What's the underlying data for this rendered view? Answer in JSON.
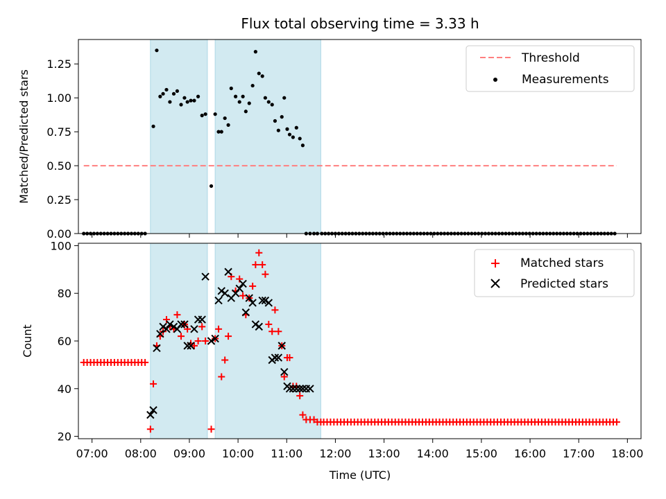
{
  "chart_data": {
    "type": "scatter",
    "title": "Flux total observing time = 3.33 h",
    "xlabel": "Time (UTC)",
    "x_ticks": [
      "07:00",
      "08:00",
      "09:00",
      "10:00",
      "11:00",
      "12:00",
      "13:00",
      "14:00",
      "15:00",
      "16:00",
      "17:00",
      "18:00"
    ],
    "x_tick_hours": [
      7,
      8,
      9,
      10,
      11,
      12,
      13,
      14,
      15,
      16,
      17,
      18
    ],
    "xlim": [
      6.72,
      18.28
    ],
    "shaded_intervals": [
      [
        8.2,
        9.37
      ],
      [
        9.53,
        11.7
      ]
    ],
    "colors": {
      "shade": "#add8e6",
      "threshold": "#ff7f7f",
      "measurements": "#000000",
      "matched": "#ff0000",
      "predicted": "#000000"
    },
    "top_panel": {
      "ylabel": "Matched/Predicted stars",
      "ylim": [
        0,
        1.43
      ],
      "y_ticks": [
        "0.00",
        "0.25",
        "0.50",
        "0.75",
        "1.00",
        "1.25"
      ],
      "y_tick_values": [
        0,
        0.25,
        0.5,
        0.75,
        1.0,
        1.25
      ],
      "legend": {
        "position": "top-right",
        "threshold_label": "Threshold",
        "measurements_label": "Measurements"
      },
      "threshold": {
        "x": [
          6.83,
          17.78
        ],
        "y": 0.5
      },
      "measurements": {
        "x": [
          8.26,
          8.33,
          8.4,
          8.46,
          8.53,
          8.6,
          8.68,
          8.75,
          8.83,
          8.9,
          8.96,
          9.03,
          9.1,
          9.18,
          9.26,
          9.33,
          9.45,
          9.53,
          9.6,
          9.66,
          9.73,
          9.8,
          9.86,
          9.95,
          10.03,
          10.1,
          10.16,
          10.23,
          10.3,
          10.36,
          10.43,
          10.5,
          10.56,
          10.63,
          10.7,
          10.76,
          10.83,
          10.9,
          10.95,
          11.01,
          11.06,
          11.13,
          11.2,
          11.27,
          11.33,
          11.4,
          11.48,
          11.56,
          11.63
        ],
        "y": [
          0.79,
          1.35,
          1.01,
          1.03,
          1.06,
          0.97,
          1.03,
          1.05,
          0.95,
          1.0,
          0.97,
          0.98,
          0.98,
          1.01,
          0.87,
          0.88,
          0.35,
          0.88,
          0.75,
          0.75,
          0.85,
          0.8,
          1.07,
          1.01,
          0.97,
          1.01,
          0.9,
          0.96,
          1.09,
          1.34,
          1.18,
          1.16,
          1.0,
          0.97,
          0.95,
          0.83,
          0.76,
          0.86,
          1.0,
          0.77,
          0.73,
          0.71,
          0.78,
          0.7,
          0.65,
          0.0,
          0.0,
          0.0,
          0.0
        ]
      },
      "zero_ranges": [
        [
          6.83,
          8.1
        ],
        [
          11.72,
          17.78
        ]
      ],
      "zero_step": 0.07
    },
    "bottom_panel": {
      "ylabel": "Count",
      "ylim": [
        19,
        101
      ],
      "y_ticks": [
        "20",
        "40",
        "60",
        "80",
        "100"
      ],
      "y_tick_values": [
        20,
        40,
        60,
        80,
        100
      ],
      "legend": {
        "position": "top-right",
        "matched_label": "Matched stars",
        "predicted_label": "Predicted stars"
      },
      "matched_flat_ranges": [
        [
          6.83,
          8.1,
          51
        ],
        [
          11.83,
          17.78,
          26
        ]
      ],
      "flat_step": 0.07,
      "matched_points": {
        "x": [
          8.2,
          8.26,
          8.33,
          8.4,
          8.46,
          8.53,
          8.6,
          8.68,
          8.75,
          8.83,
          8.9,
          8.96,
          9.03,
          9.1,
          9.18,
          9.26,
          9.33,
          9.45,
          9.53,
          9.6,
          9.66,
          9.73,
          9.8,
          9.86,
          9.95,
          10.03,
          10.1,
          10.16,
          10.23,
          10.3,
          10.36,
          10.43,
          10.5,
          10.56,
          10.63,
          10.7,
          10.76,
          10.83,
          10.9,
          10.95,
          11.01,
          11.06,
          11.13,
          11.2,
          11.27,
          11.33,
          11.4,
          11.48,
          11.56,
          11.63,
          11.7,
          11.76
        ],
        "y": [
          23,
          42,
          58,
          62,
          64,
          69,
          66,
          65,
          71,
          62,
          67,
          65,
          59,
          58,
          60,
          66,
          60,
          23,
          61,
          65,
          45,
          52,
          62,
          87,
          81,
          86,
          79,
          71,
          78,
          83,
          92,
          97,
          92,
          88,
          67,
          64,
          73,
          64,
          58,
          45,
          53,
          53,
          41,
          41,
          37,
          29,
          27,
          27,
          27,
          26,
          26,
          26
        ]
      },
      "predicted_points": {
        "x": [
          8.2,
          8.26,
          8.33,
          8.4,
          8.46,
          8.53,
          8.6,
          8.68,
          8.75,
          8.83,
          8.9,
          8.96,
          9.03,
          9.1,
          9.18,
          9.26,
          9.33,
          9.45,
          9.53,
          9.6,
          9.66,
          9.73,
          9.8,
          9.86,
          9.95,
          10.03,
          10.1,
          10.16,
          10.23,
          10.3,
          10.36,
          10.43,
          10.5,
          10.56,
          10.63,
          10.7,
          10.76,
          10.83,
          10.9,
          10.95,
          11.01,
          11.06,
          11.13,
          11.2,
          11.27,
          11.33,
          11.4,
          11.48
        ],
        "y": [
          29,
          31,
          57,
          63,
          66,
          65,
          67,
          66,
          65,
          67,
          67,
          58,
          58,
          65,
          69,
          69,
          87,
          60,
          61,
          77,
          81,
          80,
          89,
          78,
          80,
          82,
          84,
          72,
          78,
          76,
          67,
          66,
          77,
          77,
          76,
          52,
          53,
          53,
          58,
          47,
          41,
          40,
          40,
          40,
          40,
          40,
          40,
          40
        ]
      }
    }
  }
}
